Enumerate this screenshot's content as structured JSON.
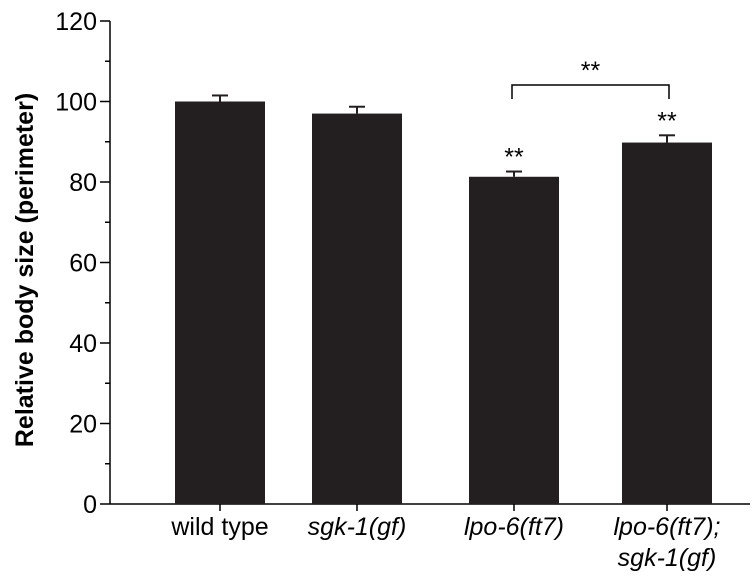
{
  "chart_data": {
    "type": "bar",
    "title": "",
    "xlabel": "",
    "ylabel": "Relative body size (perimeter)",
    "ylim": [
      0,
      120
    ],
    "yticks": [
      0,
      20,
      40,
      60,
      80,
      100,
      120
    ],
    "categories": [
      {
        "lines": [
          "wild type"
        ],
        "italic": false
      },
      {
        "lines": [
          "sgk-1(gf)"
        ],
        "italic": true
      },
      {
        "lines": [
          "lpo-6(ft7)"
        ],
        "italic": true
      },
      {
        "lines": [
          "lpo-6(ft7);",
          "sgk-1(gf)"
        ],
        "italic": true
      }
    ],
    "values": [
      100,
      97,
      81.3,
      89.8
    ],
    "errors": [
      1.5,
      1.7,
      1.3,
      1.8
    ],
    "bar_color": "#231f20",
    "significance": [
      {
        "bar": 2,
        "label": "**"
      },
      {
        "bar": 3,
        "label": "**"
      }
    ],
    "bracket": {
      "from": 2,
      "to": 3,
      "label": "**"
    },
    "grid": false,
    "legend": "none"
  }
}
